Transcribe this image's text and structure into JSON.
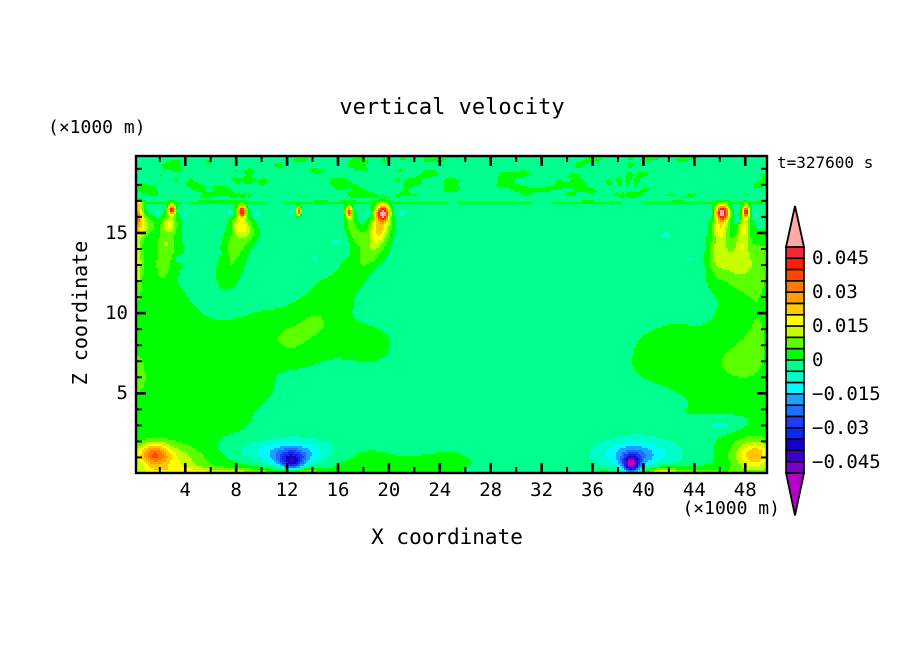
{
  "title": "vertical velocity",
  "annotations": {
    "time_label": "t=327600 s",
    "z_axis_unit_label": "(×1000 m)",
    "x_axis_unit_label": "(×1000 m)"
  },
  "axes": {
    "x": {
      "label": "X coordinate",
      "range": [
        0.13,
        49.71
      ],
      "major_tick_values": [
        4,
        8,
        12,
        16,
        20,
        24,
        28,
        32,
        36,
        40,
        44,
        48
      ],
      "major_tick_labels": [
        "4",
        "8",
        "12",
        "16",
        "20",
        "24",
        "28",
        "32",
        "36",
        "40",
        "44",
        "48"
      ],
      "minor_tick_step": 2
    },
    "z": {
      "label": "Z coordinate",
      "range": [
        0.03,
        19.8
      ],
      "major_tick_values": [
        5,
        10,
        15
      ],
      "major_tick_labels": [
        "5",
        "10",
        "15"
      ],
      "minor_tick_step": 1
    }
  },
  "colorbar": {
    "tick_labels": [
      "0.045",
      "0.03",
      "0.015",
      "0",
      "−0.015",
      "−0.03",
      "−0.045"
    ],
    "tick_values": [
      0.045,
      0.03,
      0.015,
      0,
      -0.015,
      -0.03,
      -0.045
    ],
    "band_colors": [
      "#B400C8",
      "#7800C8",
      "#3C00C8",
      "#1400C8",
      "#0A28F0",
      "#1E3CFF",
      "#1E6EFF",
      "#1EA0FF",
      "#00FAFF",
      "#00FFC8",
      "#00FF8C",
      "#00FF00",
      "#5AFF00",
      "#C8FF00",
      "#FFFF00",
      "#FFC800",
      "#FFA000",
      "#FF7800",
      "#FF4600",
      "#FF1E00",
      "#F52837",
      "#FFA8A8"
    ],
    "levels": [
      -0.05,
      -0.045,
      -0.04,
      -0.035,
      -0.03,
      -0.025,
      -0.02,
      -0.015,
      -0.01,
      -0.005,
      0.0,
      0.005,
      0.01,
      0.015,
      0.02,
      0.025,
      0.03,
      0.035,
      0.04,
      0.045,
      0.05
    ]
  },
  "chart_data": {
    "type": "filled_contour",
    "title": "vertical velocity",
    "xlabel": "X coordinate",
    "ylabel": "Z coordinate",
    "x_range": [
      0.13,
      49.71
    ],
    "z_range": [
      0.03,
      19.8
    ],
    "time_label": "t=327600 s",
    "contour_levels": [
      -0.05,
      -0.045,
      -0.04,
      -0.035,
      -0.03,
      -0.025,
      -0.02,
      -0.015,
      -0.01,
      -0.005,
      0.0,
      0.005,
      0.01,
      0.015,
      0.02,
      0.025,
      0.03,
      0.035,
      0.04,
      0.045,
      0.05
    ],
    "band_colors": [
      "#B400C8",
      "#7800C8",
      "#3C00C8",
      "#1400C8",
      "#0A28F0",
      "#1E3CFF",
      "#1E6EFF",
      "#1EA0FF",
      "#00FAFF",
      "#00FFC8",
      "#00FF8C",
      "#00FF00",
      "#5AFF00",
      "#C8FF00",
      "#FFFF00",
      "#FFC800",
      "#FFA000",
      "#FF7800",
      "#FF4600",
      "#FF1E00",
      "#F52837",
      "#FFA8A8"
    ],
    "out_of_range_colors": {
      "below": "#B400C8",
      "above": "#FFA8A8"
    },
    "field_model": {
      "note": "scalar field w(x,z) in units of 0.001; filled bands every 0.005 from -0.05 to 0.05",
      "background": -2.0,
      "gaussians": [
        [
          4.5,
          5.5,
          5.5,
          5.0,
          4.6
        ],
        [
          2.0,
          10.0,
          4.0,
          2.5,
          2.5
        ],
        [
          11.0,
          8.5,
          4.0,
          3.0,
          2.2
        ],
        [
          16.0,
          8.6,
          3.0,
          2.3,
          1.5
        ],
        [
          18.5,
          7.8,
          2.6,
          1.8,
          1.3
        ],
        [
          6.0,
          0.5,
          4.5,
          6.0,
          1.3
        ],
        [
          17.0,
          0.6,
          4.5,
          4.0,
          1.2
        ],
        [
          23.5,
          0.5,
          3.4,
          3.5,
          1.0
        ],
        [
          17.5,
          5.2,
          -1.8,
          4.5,
          2.0
        ],
        [
          12.5,
          5.0,
          -1.0,
          1.6,
          1.4
        ],
        [
          0.2,
          6.3,
          8.0,
          0.7,
          1.2
        ],
        [
          0.2,
          12.3,
          7.5,
          0.5,
          1.7
        ],
        [
          46.5,
          7.0,
          5.0,
          3.0,
          3.4
        ],
        [
          48.3,
          11.2,
          4.5,
          2.0,
          2.3
        ],
        [
          43.0,
          7.0,
          4.5,
          2.4,
          2.4
        ],
        [
          40.8,
          7.0,
          2.8,
          1.4,
          1.2
        ],
        [
          48.2,
          7.0,
          3.5,
          1.6,
          1.7
        ],
        [
          44.0,
          13.2,
          -3.2,
          2.0,
          1.6
        ],
        [
          45.8,
          3.05,
          -4.5,
          2.0,
          0.5
        ],
        [
          46.1,
          3.0,
          -2.5,
          0.8,
          0.3
        ],
        [
          0.15,
          16.1,
          36.0,
          0.5,
          0.6
        ],
        [
          0.3,
          16.8,
          14.0,
          0.4,
          0.28
        ],
        [
          0.1,
          15.2,
          16.0,
          0.8,
          0.7
        ],
        [
          1.0,
          15.5,
          9.0,
          0.8,
          0.55
        ],
        [
          -0.3,
          13.9,
          10.0,
          0.8,
          1.0
        ],
        [
          0.2,
          13.0,
          7.0,
          0.55,
          1.4
        ],
        [
          2.95,
          16.45,
          46.0,
          0.28,
          0.3
        ],
        [
          2.78,
          15.55,
          17.0,
          0.6,
          0.55
        ],
        [
          2.5,
          14.4,
          10.0,
          0.85,
          0.75
        ],
        [
          2.3,
          13.2,
          6.0,
          0.9,
          0.9
        ],
        [
          2.2,
          12.3,
          3.5,
          0.8,
          0.8
        ],
        [
          8.45,
          16.35,
          52.0,
          0.3,
          0.32
        ],
        [
          8.35,
          15.5,
          19.0,
          0.7,
          0.6
        ],
        [
          9.0,
          15.0,
          7.0,
          0.7,
          0.6
        ],
        [
          8.0,
          14.3,
          10.0,
          0.95,
          0.8
        ],
        [
          7.6,
          13.1,
          6.0,
          1.0,
          0.95
        ],
        [
          12.9,
          16.38,
          42.0,
          0.17,
          0.24
        ],
        [
          16.85,
          16.32,
          40.0,
          0.24,
          0.32
        ],
        [
          17.0,
          15.6,
          10.0,
          0.45,
          0.6
        ],
        [
          17.5,
          14.8,
          9.0,
          0.6,
          0.6
        ],
        [
          19.5,
          16.25,
          56.0,
          0.5,
          0.48
        ],
        [
          19.3,
          15.4,
          20.0,
          0.8,
          0.7
        ],
        [
          19.0,
          14.6,
          13.0,
          0.85,
          0.8
        ],
        [
          18.3,
          13.6,
          9.0,
          1.0,
          0.85
        ],
        [
          46.15,
          16.28,
          56.0,
          0.48,
          0.46
        ],
        [
          46.0,
          15.35,
          19.0,
          0.6,
          0.75
        ],
        [
          45.8,
          14.0,
          11.0,
          0.85,
          0.95
        ],
        [
          45.6,
          12.8,
          6.0,
          1.0,
          1.1
        ],
        [
          48.0,
          16.35,
          44.0,
          0.25,
          0.36
        ],
        [
          47.9,
          15.45,
          14.0,
          0.45,
          0.7
        ],
        [
          47.65,
          14.4,
          10.0,
          0.55,
          0.95
        ],
        [
          47.8,
          13.2,
          7.0,
          1.4,
          1.5
        ],
        [
          1.6,
          1.25,
          22.0,
          1.15,
          0.68
        ],
        [
          2.9,
          1.0,
          10.0,
          2.2,
          0.9
        ],
        [
          0.8,
          1.2,
          8.0,
          1.6,
          0.8
        ],
        [
          2.0,
          0.1,
          11.0,
          3.0,
          0.5
        ],
        [
          8.8,
          0.0,
          12.0,
          2.2,
          0.38
        ],
        [
          5.5,
          0.0,
          10.0,
          1.8,
          0.35
        ],
        [
          12.35,
          0.8,
          -19.0,
          0.9,
          0.5
        ],
        [
          12.0,
          1.3,
          -11.0,
          3.2,
          0.75
        ],
        [
          12.0,
          1.4,
          -5.5,
          4.6,
          0.95
        ],
        [
          12.5,
          0.2,
          -6.0,
          0.6,
          0.45
        ],
        [
          39.0,
          0.65,
          -40.0,
          0.55,
          0.45
        ],
        [
          39.3,
          1.2,
          -11.0,
          2.6,
          0.8
        ],
        [
          39.5,
          1.5,
          -5.5,
          3.9,
          1.05
        ],
        [
          41.5,
          0.0,
          25.0,
          1.3,
          0.4
        ],
        [
          44.5,
          0.0,
          10.0,
          2.2,
          0.45
        ],
        [
          48.8,
          1.1,
          17.0,
          1.7,
          1.05
        ],
        [
          48.6,
          1.3,
          5.0,
          0.8,
          0.55
        ],
        [
          47.8,
          1.2,
          6.0,
          2.6,
          1.6
        ],
        [
          1.9,
          16.25,
          -9.0,
          0.22,
          0.2
        ],
        [
          4.05,
          16.2,
          -8.0,
          0.22,
          0.2
        ],
        [
          7.55,
          16.25,
          -9.0,
          0.22,
          0.2
        ],
        [
          9.6,
          16.2,
          -8.0,
          0.22,
          0.2
        ],
        [
          12.2,
          16.3,
          -7.0,
          0.22,
          0.18
        ],
        [
          18.35,
          16.2,
          -8.0,
          0.22,
          0.2
        ],
        [
          21.0,
          16.25,
          -8.0,
          0.22,
          0.2
        ],
        [
          15.75,
          14.45,
          -7.0,
          0.35,
          0.2
        ],
        [
          41.7,
          14.85,
          -7.0,
          0.4,
          0.2
        ],
        [
          45.2,
          16.2,
          -8.0,
          0.22,
          0.2
        ],
        [
          47.35,
          15.8,
          -8.0,
          0.22,
          0.2
        ],
        [
          48.7,
          16.2,
          -7.0,
          0.22,
          0.18
        ],
        [
          7.2,
          12.2,
          3.5,
          0.9,
          0.9
        ],
        [
          3.5,
          13.4,
          -6.0,
          0.3,
          0.18
        ],
        [
          6.6,
          13.7,
          -5.0,
          0.25,
          0.15
        ],
        [
          17.2,
          12.4,
          6.0,
          1.2,
          1.0
        ],
        [
          15.8,
          11.0,
          5.0,
          1.4,
          1.1
        ],
        [
          14.2,
          9.6,
          4.5,
          1.6,
          1.2
        ],
        [
          12.5,
          8.4,
          4.0,
          1.8,
          1.3
        ],
        [
          46.9,
          12.9,
          5.0,
          1.3,
          1.2
        ],
        [
          14.2,
          13.5,
          -5.0,
          0.3,
          0.18
        ],
        [
          49.3,
          9.0,
          4.0,
          1.2,
          3.0
        ],
        [
          44.2,
          9.7,
          -1.8,
          1.3,
          1.0
        ],
        [
          49.4,
          13.5,
          6.0,
          0.9,
          1.5
        ],
        [
          39.1,
          0.9,
          -10.0,
          1.1,
          0.7
        ],
        [
          12.3,
          1.0,
          -11.0,
          1.4,
          0.65
        ],
        [
          37.0,
          0.0,
          7.0,
          1.2,
          0.3
        ],
        [
          12.9,
          0.0,
          22.0,
          1.5,
          0.35
        ]
      ],
      "shear_line": {
        "z": 16.9,
        "sigma": 0.11,
        "amp": 3.6
      },
      "mottle_noise": {
        "z_on": 17.05,
        "z_full": 17.4,
        "amp": 6.0,
        "bias": -0.4,
        "su1": 1.45,
        "sv1": 0.48,
        "su2": 1.0,
        "sv2": 0.3,
        "oct2": 0.5,
        "clamp": 4.85,
        "z_clamp": 17.15,
        "amp_right": 5.0,
        "bias_right": -0.75,
        "xfade": [
          22.0,
          30.0
        ]
      },
      "background_noise": {
        "amp": 1.2,
        "su": 3.6,
        "sv": 1.7
      },
      "wave_fans": [
        {
          "x": 3.0,
          "n": 9,
          "amp": 1.8,
          "r0": 1.6,
          "sr": 1.4,
          "ph": 0.3
        },
        {
          "x": 8.5,
          "n": 9,
          "amp": 1.8,
          "r0": 1.7,
          "sr": 1.5,
          "ph": 1.1
        },
        {
          "x": 20.0,
          "n": 11,
          "amp": 3.0,
          "r0": 2.3,
          "sr": 2.0,
          "ph": 0.0
        },
        {
          "x": 38.5,
          "n": 13,
          "amp": 2.4,
          "r0": 2.6,
          "sr": 2.2,
          "ph": 0.5
        },
        {
          "x": 47.5,
          "n": 8,
          "amp": 2.2,
          "r0": 1.8,
          "sr": 1.6,
          "ph": 0.9
        }
      ]
    }
  }
}
